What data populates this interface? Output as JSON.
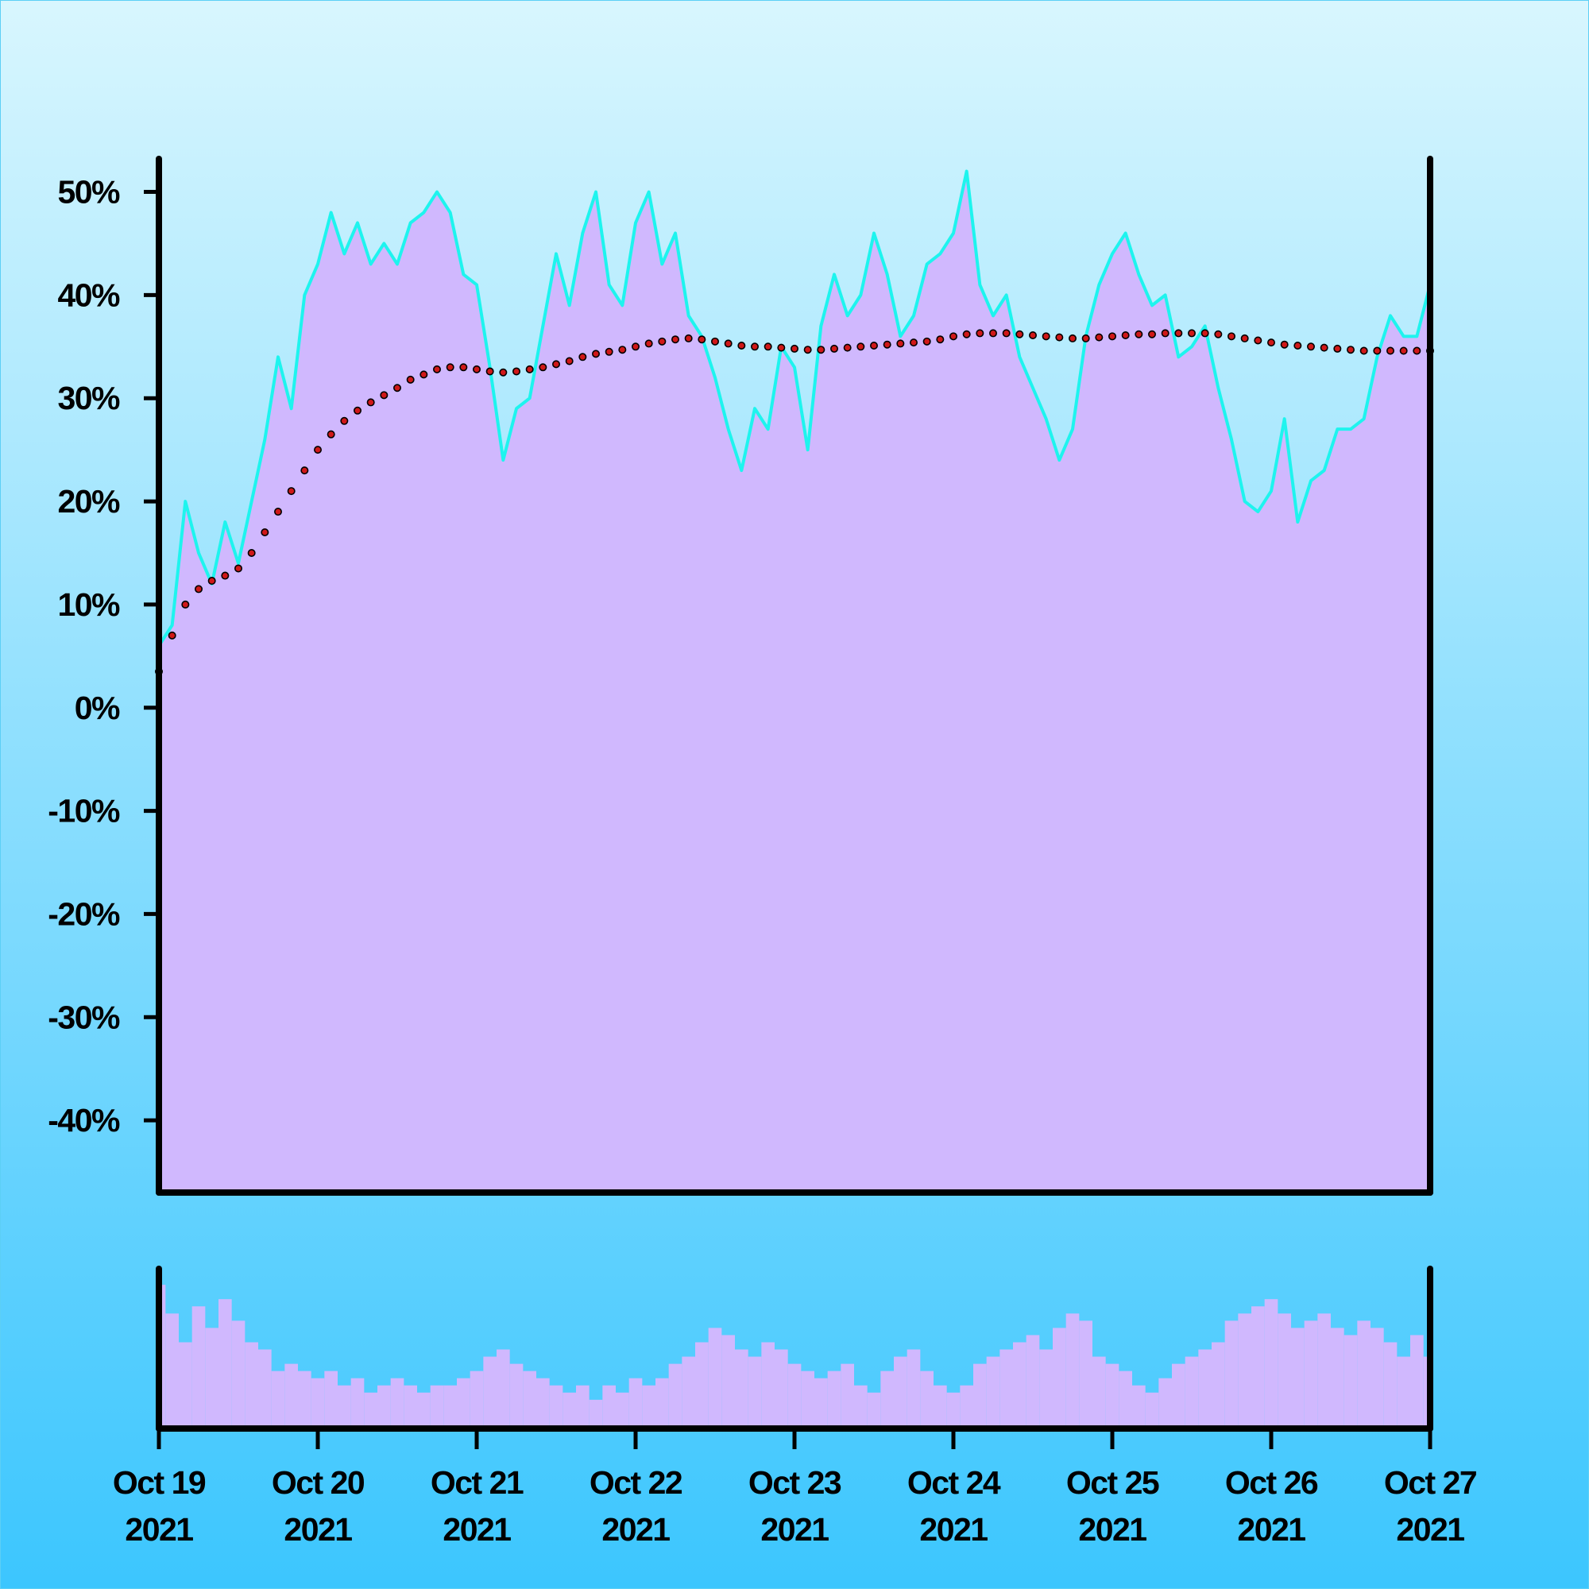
{
  "chart_data": [
    {
      "type": "area",
      "ylim": [
        -47,
        53.2
      ],
      "yticks": [
        {
          "value": -40,
          "label": "-40%"
        },
        {
          "value": -30,
          "label": "-30%"
        },
        {
          "value": -20,
          "label": "-20%"
        },
        {
          "value": -10,
          "label": "-10%"
        },
        {
          "value": 0,
          "label": "0%"
        },
        {
          "value": 10,
          "label": "10%"
        },
        {
          "value": 20,
          "label": "20%"
        },
        {
          "value": 30,
          "label": "30%"
        },
        {
          "value": 40,
          "label": "40%"
        },
        {
          "value": 50,
          "label": "50%"
        }
      ],
      "series": [
        {
          "type": "area",
          "color": "#d0b8fe",
          "line_color": "#1ef4ee",
          "values": [
            6,
            8,
            20,
            15,
            12,
            18,
            14,
            20,
            26,
            34,
            29,
            40,
            43,
            48,
            44,
            47,
            43,
            45,
            43,
            47,
            48,
            50,
            48,
            42,
            41,
            33,
            24,
            29,
            30,
            37,
            44,
            39,
            46,
            50,
            41,
            39,
            47,
            50,
            43,
            46,
            38,
            36,
            32,
            27,
            23,
            29,
            27,
            35,
            33,
            25,
            37,
            42,
            38,
            40,
            46,
            42,
            36,
            38,
            43,
            44,
            46,
            52,
            41,
            38,
            40,
            34,
            31,
            28,
            24,
            27,
            36,
            41,
            44,
            46,
            42,
            39,
            40,
            34,
            35,
            37,
            31,
            26,
            20,
            19,
            21,
            28,
            18,
            22,
            23,
            27,
            27,
            28,
            34,
            38,
            36,
            36,
            41
          ]
        },
        {
          "type": "dots",
          "color": "#d01818",
          "values": [
            3.5,
            7,
            10,
            11.5,
            12.3,
            12.8,
            13.5,
            15,
            17,
            19,
            21,
            23,
            25,
            26.5,
            27.8,
            28.8,
            29.6,
            30.3,
            31,
            31.8,
            32.3,
            32.8,
            33,
            33,
            32.8,
            32.6,
            32.5,
            32.6,
            32.8,
            33,
            33.3,
            33.6,
            34,
            34.3,
            34.5,
            34.7,
            35,
            35.3,
            35.5,
            35.7,
            35.8,
            35.7,
            35.5,
            35.3,
            35.1,
            35,
            35,
            34.9,
            34.8,
            34.7,
            34.7,
            34.8,
            34.9,
            35,
            35.1,
            35.2,
            35.3,
            35.4,
            35.5,
            35.7,
            36,
            36.2,
            36.3,
            36.3,
            36.3,
            36.2,
            36.1,
            36,
            35.9,
            35.8,
            35.8,
            35.9,
            36,
            36.1,
            36.2,
            36.2,
            36.3,
            36.3,
            36.3,
            36.3,
            36.2,
            36,
            35.8,
            35.6,
            35.4,
            35.2,
            35.1,
            35,
            34.9,
            34.8,
            34.7,
            34.6,
            34.6,
            34.6,
            34.6,
            34.6,
            34.6
          ]
        }
      ]
    },
    {
      "type": "bar",
      "color": "#d0b8fe",
      "categories": [
        "Oct 19 2021",
        null,
        null,
        null,
        null,
        null,
        null,
        null,
        null,
        null,
        null,
        null,
        "Oct 20 2021",
        null,
        null,
        null,
        null,
        null,
        null,
        null,
        null,
        null,
        null,
        null,
        "Oct 21 2021",
        null,
        null,
        null,
        null,
        null,
        null,
        null,
        null,
        null,
        null,
        null,
        "Oct 22 2021",
        null,
        null,
        null,
        null,
        null,
        null,
        null,
        null,
        null,
        null,
        null,
        "Oct 23 2021",
        null,
        null,
        null,
        null,
        null,
        null,
        null,
        null,
        null,
        null,
        null,
        "Oct 24 2021",
        null,
        null,
        null,
        null,
        null,
        null,
        null,
        null,
        null,
        null,
        null,
        "Oct 25 2021",
        null,
        null,
        null,
        null,
        null,
        null,
        null,
        null,
        null,
        null,
        null,
        "Oct 26 2021",
        null,
        null,
        null,
        null,
        null,
        null,
        null,
        null,
        null,
        null,
        null,
        "Oct 27 2021"
      ],
      "values": [
        100,
        80,
        60,
        85,
        70,
        90,
        75,
        60,
        55,
        40,
        45,
        40,
        35,
        40,
        30,
        35,
        25,
        30,
        35,
        30,
        25,
        30,
        30,
        35,
        40,
        50,
        55,
        45,
        40,
        35,
        30,
        25,
        30,
        20,
        30,
        25,
        35,
        30,
        35,
        45,
        50,
        60,
        70,
        65,
        55,
        50,
        60,
        55,
        45,
        40,
        35,
        40,
        45,
        30,
        25,
        40,
        50,
        55,
        40,
        30,
        25,
        30,
        45,
        50,
        55,
        60,
        65,
        55,
        70,
        80,
        75,
        50,
        45,
        40,
        30,
        25,
        35,
        45,
        50,
        55,
        60,
        75,
        80,
        85,
        90,
        80,
        70,
        75,
        80,
        70,
        65,
        75,
        70,
        60,
        50,
        65,
        50
      ]
    }
  ]
}
